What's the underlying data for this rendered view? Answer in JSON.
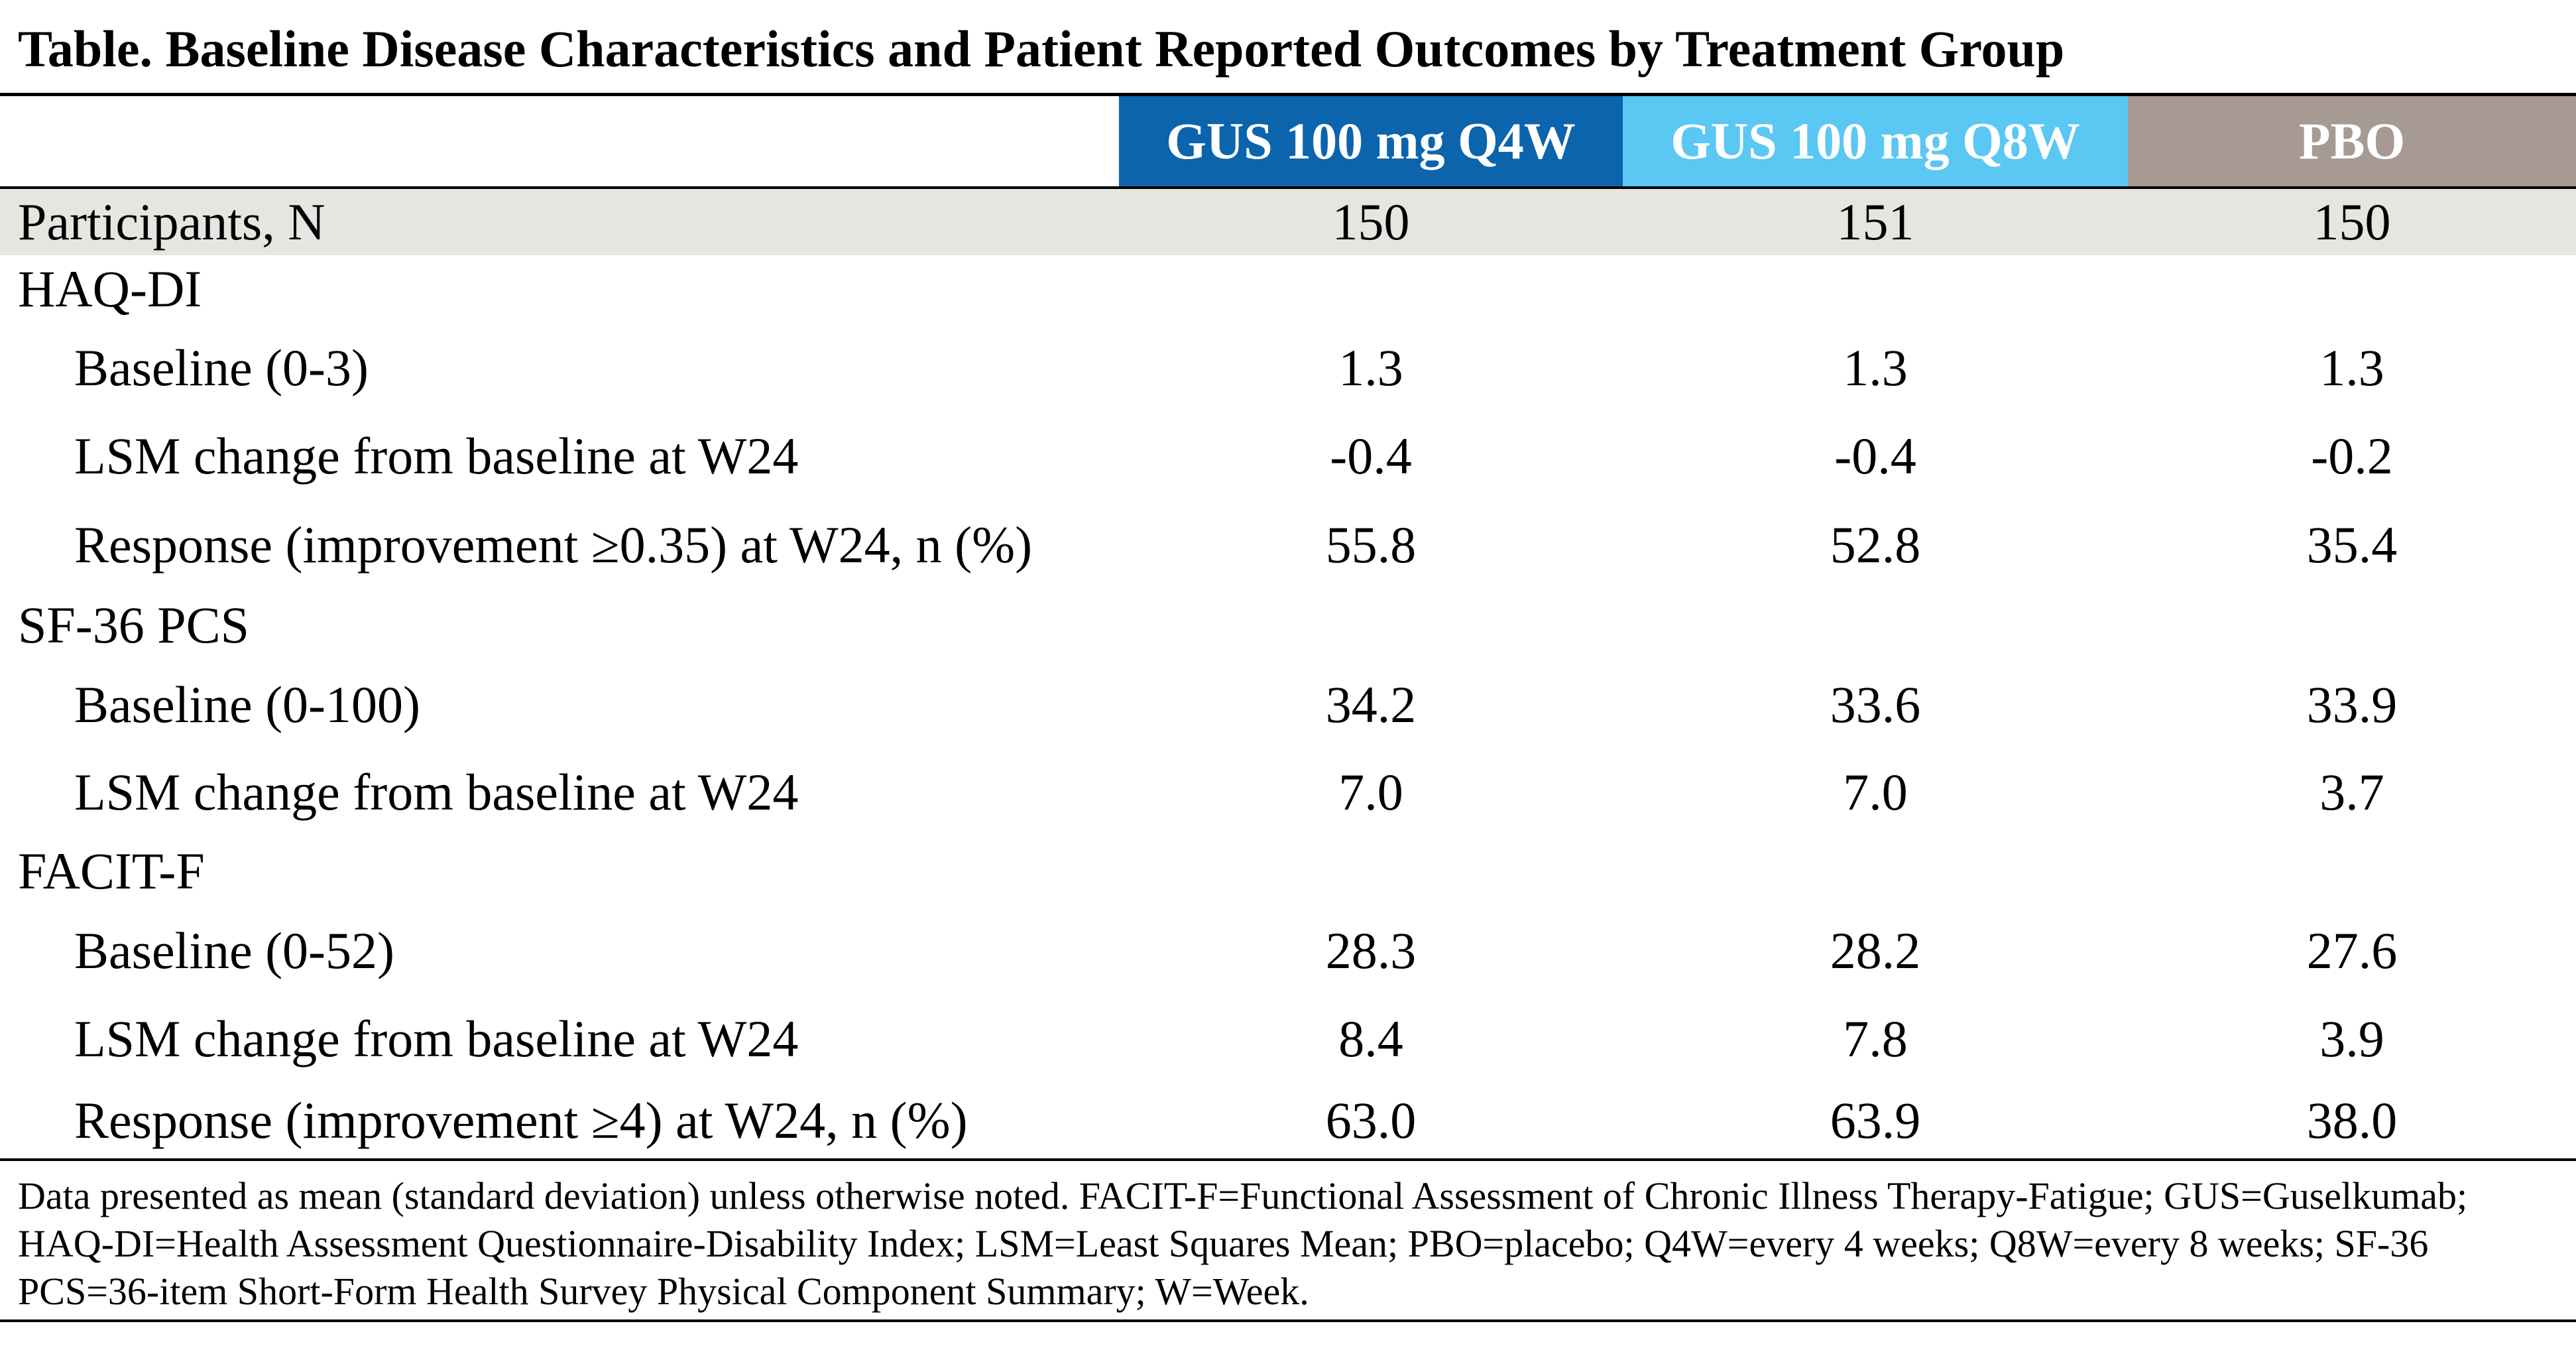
{
  "title": "Table. Baseline Disease Characteristics and Patient Reported Outcomes by Treatment Group",
  "columns": {
    "q4w": "GUS 100 mg Q4W",
    "q8w": "GUS 100 mg Q8W",
    "pbo": "PBO"
  },
  "colors": {
    "q4w_header": "#0c64ad",
    "q8w_header": "#5bc7f3",
    "pbo_header": "#a69a92",
    "participants_row": "#e5e5e1"
  },
  "rows": [
    {
      "label": "Participants, N",
      "q4w": "150",
      "q8w": "151",
      "pbo": "150"
    },
    {
      "label": "HAQ-DI",
      "q4w": "",
      "q8w": "",
      "pbo": ""
    },
    {
      "label": "Baseline (0-3)",
      "q4w": "1.3",
      "q8w": "1.3",
      "pbo": "1.3"
    },
    {
      "label": "LSM change from baseline at W24",
      "q4w": "-0.4",
      "q8w": "-0.4",
      "pbo": "-0.2"
    },
    {
      "label": "Response (improvement ≥0.35) at W24, n (%)",
      "q4w": "55.8",
      "q8w": "52.8",
      "pbo": "35.4"
    },
    {
      "label": "SF-36 PCS",
      "q4w": "",
      "q8w": "",
      "pbo": ""
    },
    {
      "label": "Baseline (0-100)",
      "q4w": "34.2",
      "q8w": "33.6",
      "pbo": "33.9"
    },
    {
      "label": "LSM change from baseline at W24",
      "q4w": "7.0",
      "q8w": "7.0",
      "pbo": "3.7"
    },
    {
      "label": "FACIT-F",
      "q4w": "",
      "q8w": "",
      "pbo": ""
    },
    {
      "label": "Baseline (0-52)",
      "q4w": "28.3",
      "q8w": "28.2",
      "pbo": "27.6"
    },
    {
      "label": "LSM change from baseline at W24",
      "q4w": "8.4",
      "q8w": "7.8",
      "pbo": "3.9"
    },
    {
      "label": "Response (improvement ≥4) at W24, n (%)",
      "q4w": "63.0",
      "q8w": "63.9",
      "pbo": "38.0"
    }
  ],
  "footnote": "Data presented as mean (standard deviation) unless otherwise noted. FACIT-F=Functional Assessment of Chronic Illness Therapy-Fatigue; GUS=Guselkumab; HAQ-DI=Health Assessment Questionnaire-Disability Index; LSM=Least Squares Mean; PBO=placebo; Q4W=every 4 weeks; Q8W=every 8 weeks; SF-36 PCS=36-item Short-Form Health Survey Physical Component Summary; W=Week."
}
